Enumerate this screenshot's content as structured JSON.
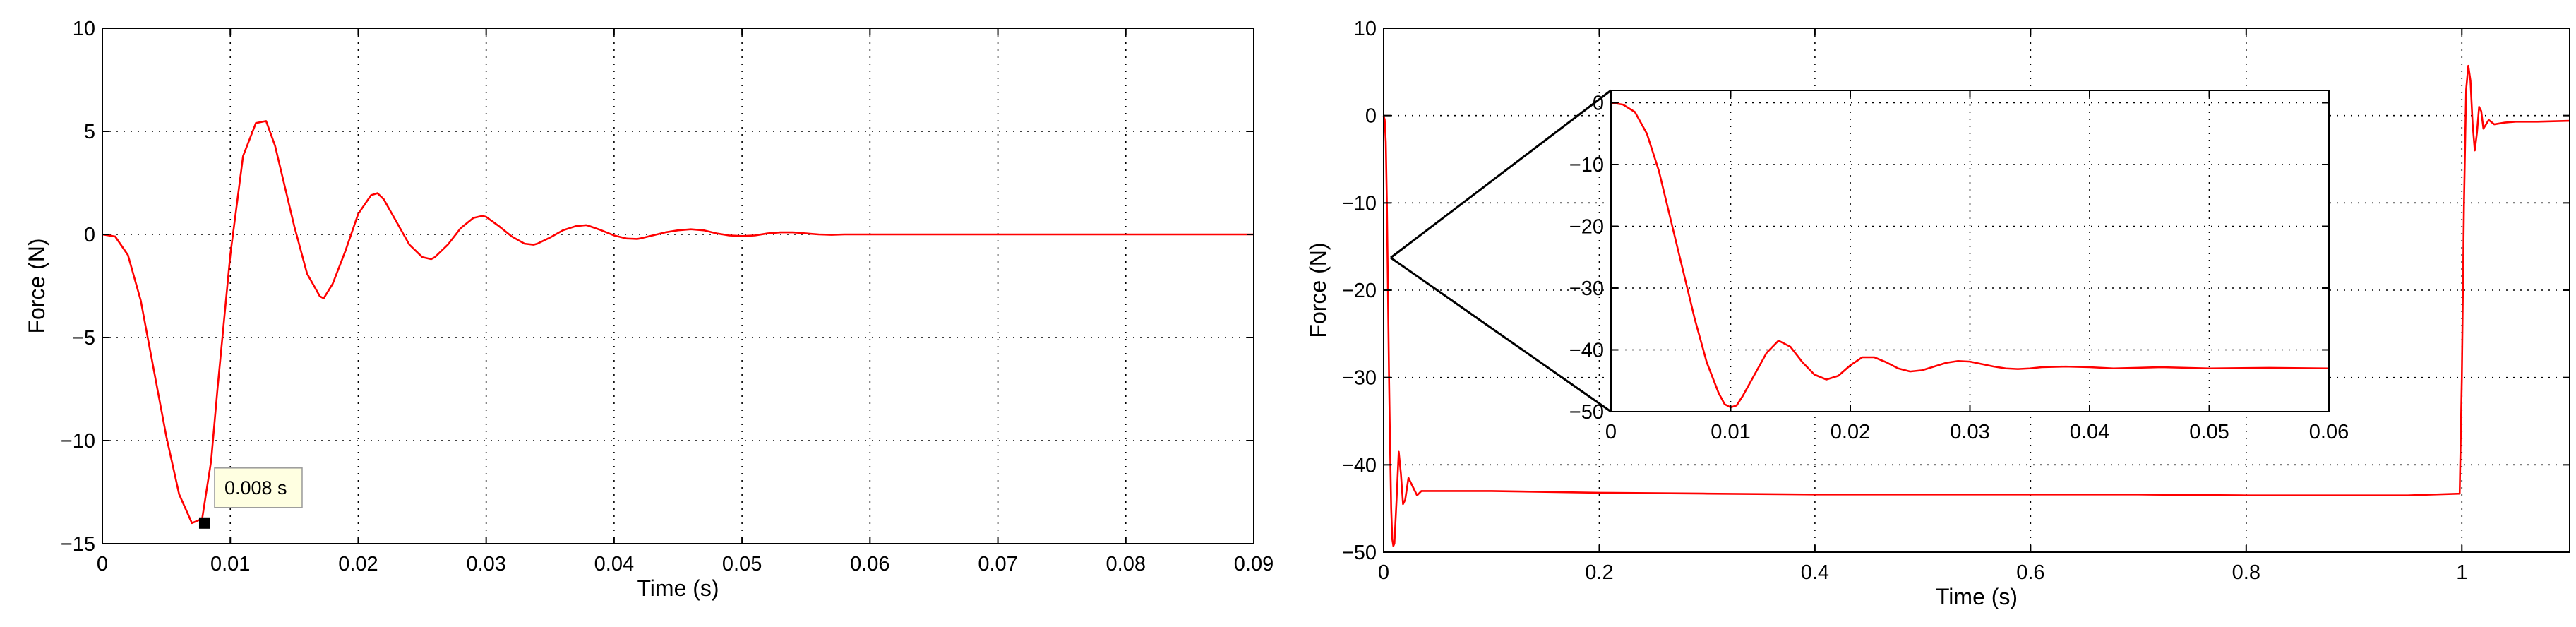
{
  "colors": {
    "series": "#ff0000",
    "axes": "#000000",
    "grid": "#000000",
    "tooltip_bg": "#ffffe1"
  },
  "chart_data": [
    {
      "type": "line",
      "title": "",
      "xlabel": "Time (s)",
      "ylabel": "Force (N)",
      "xlim": [
        0,
        0.09
      ],
      "ylim": [
        -15,
        10
      ],
      "xticks": [
        0,
        0.01,
        0.02,
        0.03,
        0.04,
        0.05,
        0.06,
        0.07,
        0.08,
        0.09
      ],
      "xtick_labels": [
        "0",
        "0.01",
        "0.02",
        "0.03",
        "0.04",
        "0.05",
        "0.06",
        "0.07",
        "0.08",
        "0.09"
      ],
      "yticks": [
        -15,
        -10,
        -5,
        0,
        5,
        10
      ],
      "ytick_labels": [
        "−15",
        "−10",
        "−5",
        "0",
        "5",
        "10"
      ],
      "grid": true,
      "legend": "none",
      "series": [
        {
          "x": [
            0,
            0.001,
            0.002,
            0.003,
            0.004,
            0.005,
            0.006,
            0.007,
            0.0078,
            0.0085,
            0.009,
            0.01,
            0.011,
            0.012,
            0.0128,
            0.0135,
            0.014,
            0.015,
            0.016,
            0.017,
            0.0173,
            0.018,
            0.019,
            0.02,
            0.021,
            0.0215,
            0.022,
            0.023,
            0.024,
            0.025,
            0.0257,
            0.026,
            0.027,
            0.028,
            0.029,
            0.0297,
            0.03,
            0.031,
            0.032,
            0.033,
            0.0337,
            0.034,
            0.035,
            0.036,
            0.037,
            0.0378,
            0.038,
            0.039,
            0.04,
            0.041,
            0.0418,
            0.042,
            0.043,
            0.044,
            0.045,
            0.046,
            0.047,
            0.048,
            0.049,
            0.05,
            0.051,
            0.052,
            0.053,
            0.054,
            0.055,
            0.056,
            0.057,
            0.058,
            0.06,
            0.07,
            0.08,
            0.09
          ],
          "y": [
            0,
            -0.1,
            -1.0,
            -3.2,
            -6.5,
            -9.8,
            -12.6,
            -14.0,
            -13.8,
            -11.0,
            -7.5,
            -1.0,
            3.8,
            5.4,
            5.5,
            4.3,
            3.0,
            0.4,
            -1.9,
            -3.0,
            -3.1,
            -2.4,
            -0.8,
            1.0,
            1.9,
            2.0,
            1.7,
            0.6,
            -0.5,
            -1.1,
            -1.2,
            -1.1,
            -0.5,
            0.3,
            0.8,
            0.9,
            0.85,
            0.4,
            -0.1,
            -0.45,
            -0.5,
            -0.45,
            -0.15,
            0.2,
            0.4,
            0.45,
            0.42,
            0.2,
            -0.05,
            -0.2,
            -0.22,
            -0.2,
            -0.05,
            0.1,
            0.2,
            0.25,
            0.2,
            0.05,
            -0.05,
            -0.08,
            -0.05,
            0.05,
            0.1,
            0.1,
            0.05,
            0,
            -0.02,
            0,
            0,
            0,
            0,
            0
          ]
        }
      ],
      "annotations": [
        {
          "text": "0.008 s",
          "x": 0.008,
          "y": -14
        }
      ]
    },
    {
      "type": "line",
      "title": "",
      "xlabel": "Time (s)",
      "ylabel": "Force (N)",
      "xlim": [
        0,
        1.1
      ],
      "ylim": [
        -50,
        10
      ],
      "xticks": [
        0,
        0.2,
        0.4,
        0.6,
        0.8,
        1
      ],
      "xtick_labels": [
        "0",
        "0.2",
        "0.4",
        "0.6",
        "0.8",
        "1"
      ],
      "yticks": [
        -50,
        -40,
        -30,
        -20,
        -10,
        0,
        10
      ],
      "ytick_labels": [
        "−50",
        "−40",
        "−30",
        "−20",
        "−10",
        "0",
        "10"
      ],
      "grid": true,
      "legend": "none",
      "series": [
        {
          "x": [
            0,
            0.001,
            0.002,
            0.003,
            0.004,
            0.005,
            0.006,
            0.007,
            0.008,
            0.009,
            0.01,
            0.012,
            0.014,
            0.016,
            0.018,
            0.02,
            0.023,
            0.027,
            0.031,
            0.035,
            0.04,
            0.05,
            0.06,
            0.1,
            0.2,
            0.3,
            0.4,
            0.5,
            0.6,
            0.7,
            0.8,
            0.9,
            0.95,
            0.998,
            1.0,
            1.002,
            1.004,
            1.006,
            1.008,
            1.01,
            1.012,
            1.014,
            1.016,
            1.018,
            1.02,
            1.025,
            1.03,
            1.04,
            1.05,
            1.07,
            1.1
          ],
          "y": [
            0,
            -0.5,
            -3,
            -10,
            -20,
            -30,
            -38,
            -45,
            -48.5,
            -49.3,
            -49,
            -44,
            -38.5,
            -41,
            -44.5,
            -44,
            -41.5,
            -42.5,
            -43.5,
            -43,
            -43,
            -43,
            -43,
            -43,
            -43.2,
            -43.3,
            -43.4,
            -43.4,
            -43.4,
            -43.4,
            -43.5,
            -43.5,
            -43.5,
            -43.3,
            -30,
            -10,
            3,
            5.7,
            4,
            -1,
            -4,
            -2,
            1,
            0.5,
            -1.5,
            -0.5,
            -1,
            -0.8,
            -0.7,
            -0.7,
            -0.6
          ]
        }
      ]
    },
    {
      "type": "line",
      "title": "",
      "xlabel": "",
      "ylabel": "",
      "xlim": [
        0,
        0.06
      ],
      "ylim": [
        -50,
        2
      ],
      "xticks": [
        0,
        0.01,
        0.02,
        0.03,
        0.04,
        0.05,
        0.06
      ],
      "xtick_labels": [
        "0",
        "0.01",
        "0.02",
        "0.03",
        "0.04",
        "0.05",
        "0.06"
      ],
      "yticks": [
        -50,
        -40,
        -30,
        -20,
        -10,
        0
      ],
      "ytick_labels": [
        "−50",
        "−40",
        "−30",
        "−20",
        "−10",
        "0"
      ],
      "grid": true,
      "legend": "none",
      "series": [
        {
          "x": [
            0,
            0.001,
            0.002,
            0.003,
            0.004,
            0.005,
            0.006,
            0.007,
            0.008,
            0.009,
            0.0095,
            0.01,
            0.0105,
            0.011,
            0.012,
            0.013,
            0.014,
            0.015,
            0.016,
            0.017,
            0.018,
            0.019,
            0.02,
            0.021,
            0.022,
            0.023,
            0.024,
            0.025,
            0.026,
            0.027,
            0.028,
            0.029,
            0.03,
            0.031,
            0.032,
            0.033,
            0.034,
            0.035,
            0.036,
            0.038,
            0.04,
            0.042,
            0.044,
            0.046,
            0.048,
            0.05,
            0.055,
            0.06
          ],
          "y": [
            0,
            -0.3,
            -1.5,
            -5,
            -11,
            -19,
            -27,
            -35,
            -42,
            -47,
            -48.8,
            -49.3,
            -49,
            -47.5,
            -44,
            -40.5,
            -38.5,
            -39.5,
            -42,
            -44,
            -44.8,
            -44.2,
            -42.5,
            -41.2,
            -41.2,
            -42,
            -43,
            -43.5,
            -43.3,
            -42.7,
            -42.1,
            -41.8,
            -41.9,
            -42.3,
            -42.7,
            -43,
            -43.1,
            -43,
            -42.8,
            -42.7,
            -42.8,
            -43,
            -42.9,
            -42.8,
            -42.9,
            -43,
            -42.9,
            -43
          ]
        }
      ]
    }
  ]
}
